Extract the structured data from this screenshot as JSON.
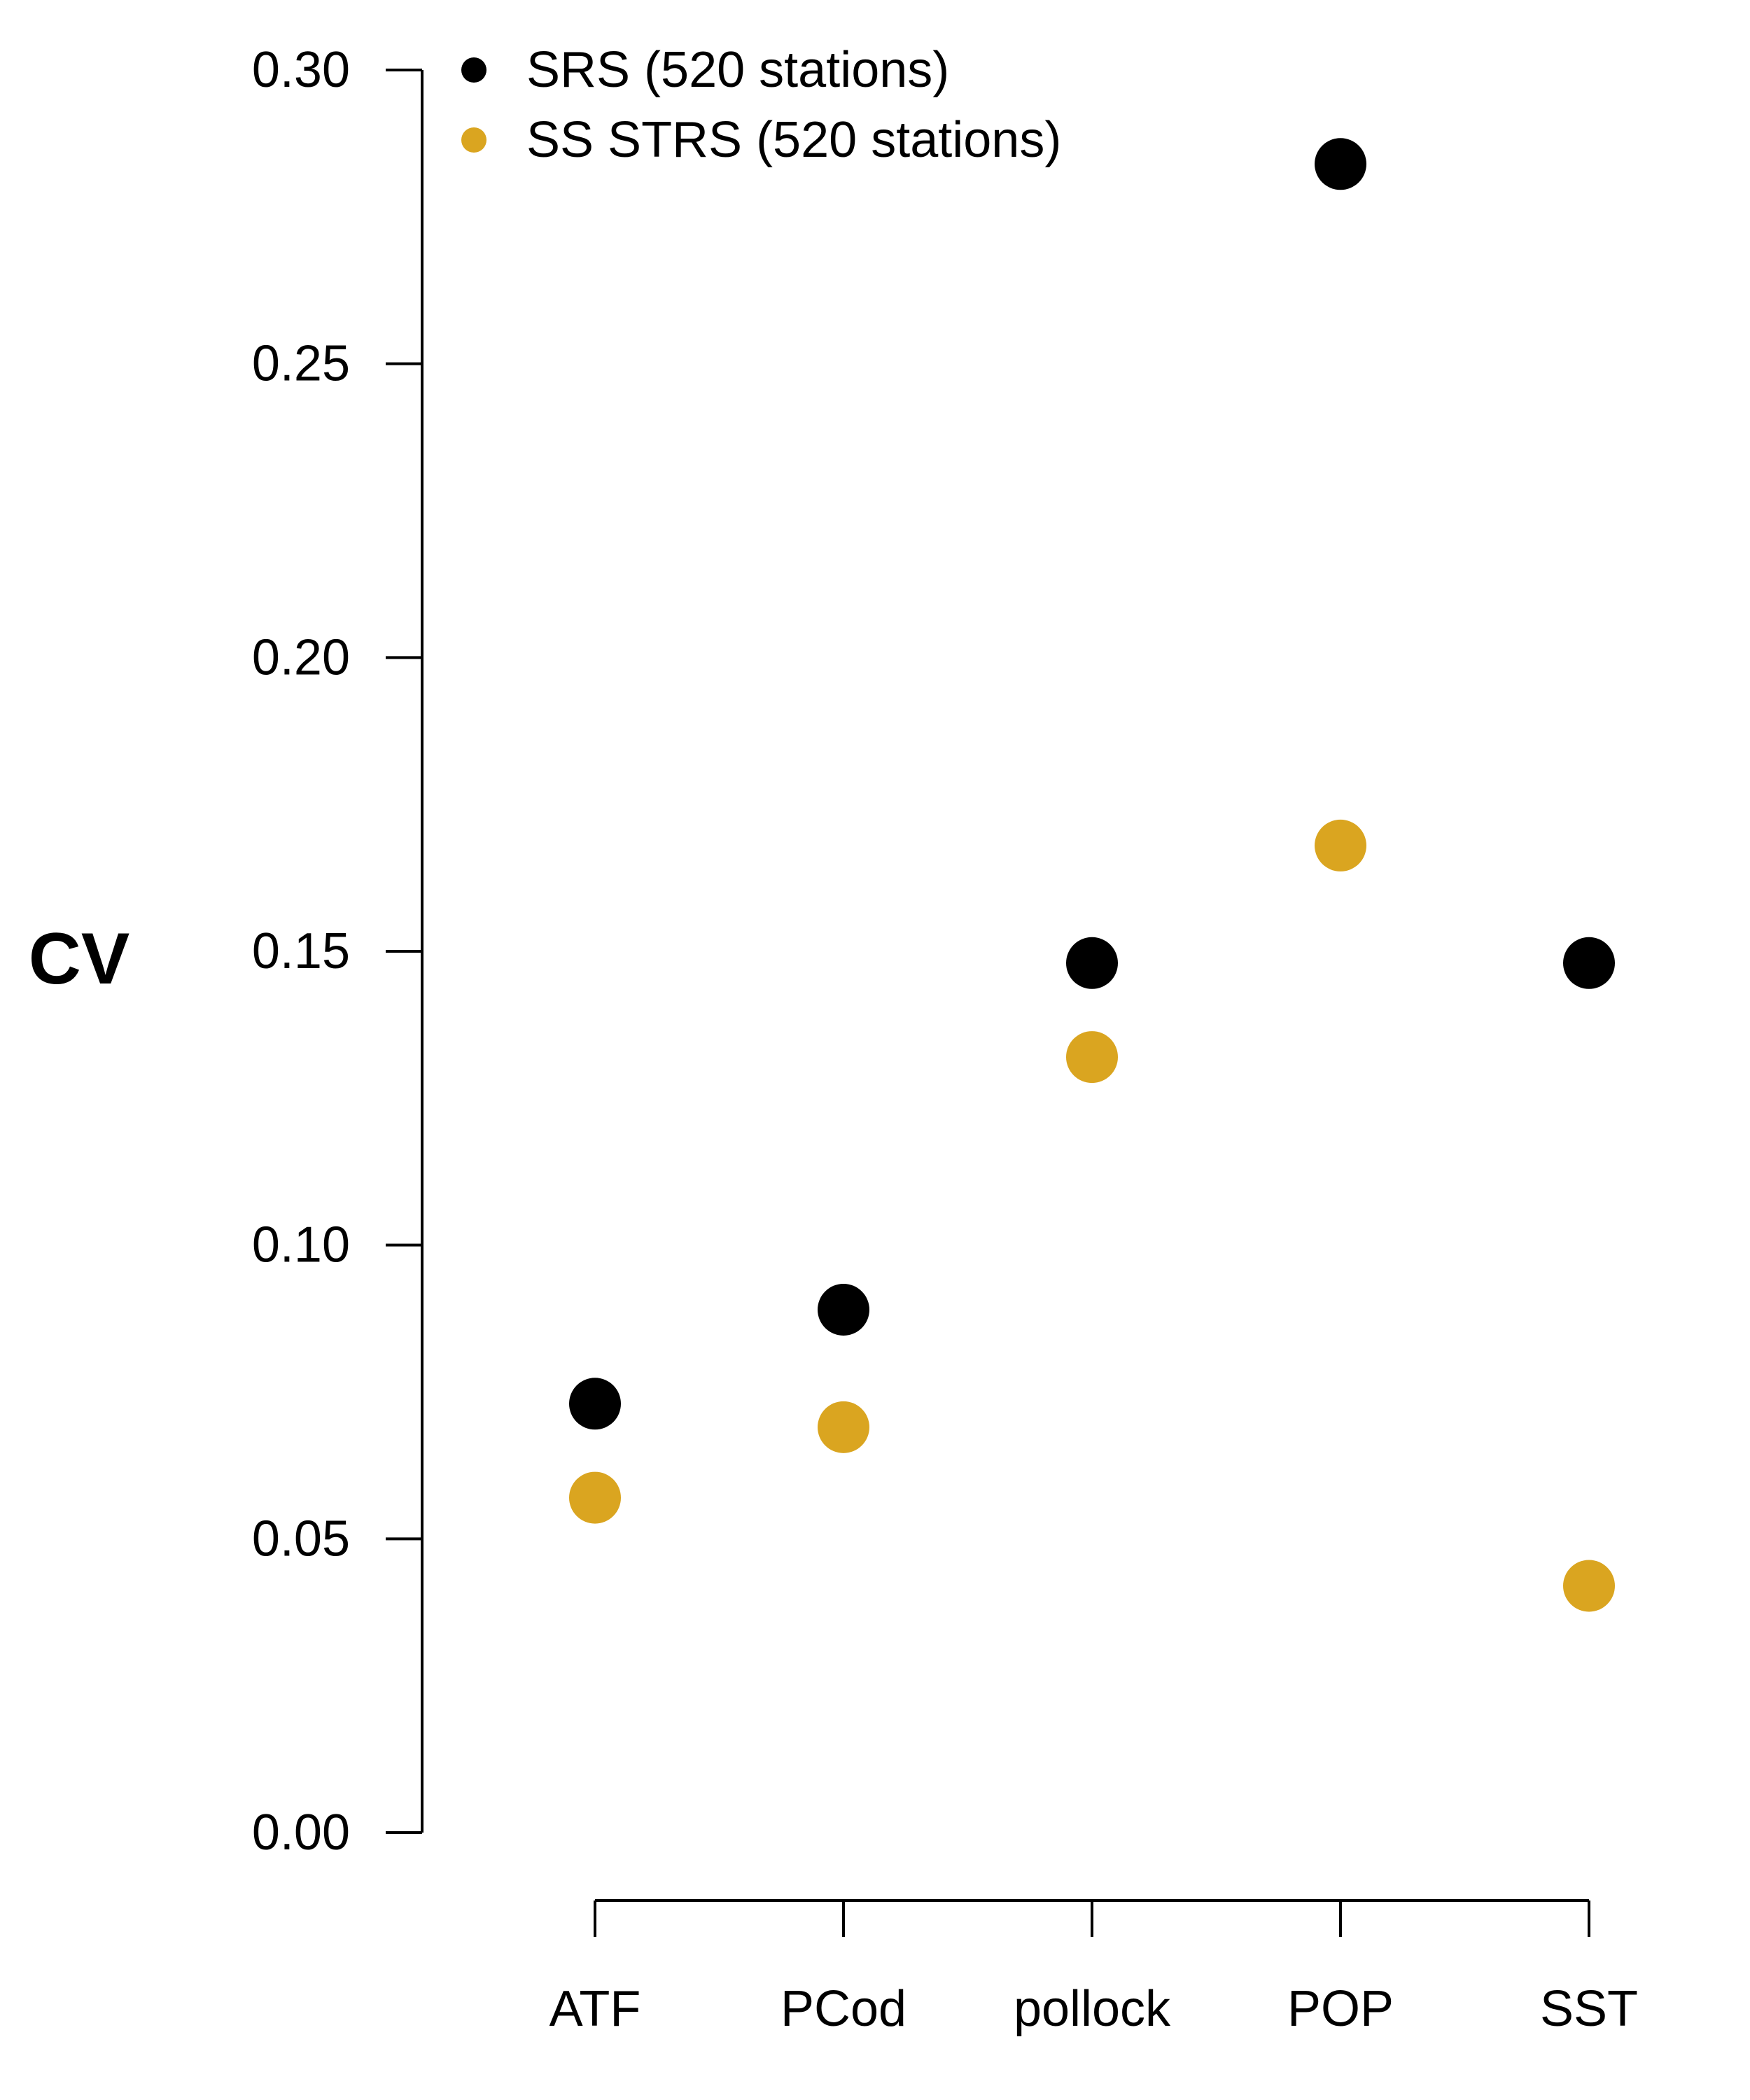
{
  "chart_data": {
    "type": "scatter",
    "ylabel": "CV",
    "xlabel": "",
    "categories": [
      "ATF",
      "PCod",
      "pollock",
      "POP",
      "SST"
    ],
    "ylim": [
      0,
      0.3
    ],
    "yticks": [
      "0.00",
      "0.05",
      "0.10",
      "0.15",
      "0.20",
      "0.25",
      "0.30"
    ],
    "grid": false,
    "legend_position": "top-left",
    "series": [
      {
        "name": "SRS (520 stations)",
        "color": "#000000",
        "values": [
          0.073,
          0.089,
          0.148,
          0.284,
          0.148
        ]
      },
      {
        "name": "SS STRS (520 stations)",
        "color": "#DAA520",
        "values": [
          0.057,
          0.069,
          0.132,
          0.168,
          0.042
        ]
      }
    ]
  }
}
